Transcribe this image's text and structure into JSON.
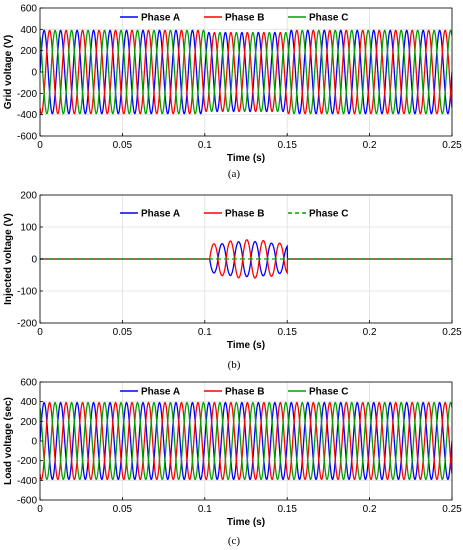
{
  "chart_data": [
    {
      "type": "line",
      "panel_label": "(a)",
      "xlabel": "Time (s)",
      "ylabel": "Grid voltage (V)",
      "xlim": [
        0,
        0.25
      ],
      "ylim": [
        -600,
        600
      ],
      "x_ticks": [
        "0",
        "0.05",
        "0.1",
        "0.15",
        "0.2",
        "0.25"
      ],
      "y_ticks": [
        "600",
        "400",
        "200",
        "0",
        "-200",
        "-400",
        "-600"
      ],
      "grid": true,
      "legend": {
        "placement": "top",
        "orientation": "horizontal"
      },
      "frequency_hz": 100,
      "t_start": 0,
      "t_end": 0.25,
      "sag": {
        "t_start": 0.1,
        "t_end": 0.15,
        "amplitude_in_sag": 370
      },
      "series": [
        {
          "name": "Phase A",
          "color": "#0000ff",
          "dash": "solid",
          "amplitude": 390,
          "phase_deg": 0
        },
        {
          "name": "Phase B",
          "color": "#ff0000",
          "dash": "solid",
          "amplitude": 390,
          "phase_deg": -120
        },
        {
          "name": "Phase C",
          "color": "#00a000",
          "dash": "solid",
          "amplitude": 390,
          "phase_deg": 120
        }
      ]
    },
    {
      "type": "line",
      "panel_label": "(b)",
      "xlabel": "Time (s)",
      "ylabel": "Injected voltage (V)",
      "xlim": [
        0,
        0.25
      ],
      "ylim": [
        -200,
        200
      ],
      "x_ticks": [
        "0",
        "0.05",
        "0.1",
        "0.15",
        "0.2",
        "0.25"
      ],
      "y_ticks": [
        "200",
        "100",
        "0",
        "-100",
        "-200"
      ],
      "grid": true,
      "legend": {
        "placement": "top",
        "orientation": "horizontal"
      },
      "frequency_hz": 100,
      "active_window": [
        0.103,
        0.15
      ],
      "series": [
        {
          "name": "Phase A",
          "color": "#0000ff",
          "dash": "solid",
          "amplitude": 55,
          "phase_deg": 180
        },
        {
          "name": "Phase B",
          "color": "#ff0000",
          "dash": "solid",
          "amplitude": 60,
          "phase_deg": 0
        },
        {
          "name": "Phase C",
          "color": "#00a000",
          "dash": "dashed",
          "amplitude": 0,
          "phase_deg": 0
        }
      ]
    },
    {
      "type": "line",
      "panel_label": "(c)",
      "xlabel": "Time (s)",
      "ylabel": "Load voltage (sec)",
      "xlim": [
        0,
        0.25
      ],
      "ylim": [
        -600,
        600
      ],
      "x_ticks": [
        "0",
        "0.05",
        "0.1",
        "0.15",
        "0.2",
        "0.25"
      ],
      "y_ticks": [
        "600",
        "400",
        "200",
        "0",
        "-200",
        "-400",
        "-600"
      ],
      "grid": true,
      "legend": {
        "placement": "top",
        "orientation": "horizontal"
      },
      "frequency_hz": 100,
      "t_start": 0,
      "t_end": 0.25,
      "series": [
        {
          "name": "Phase A",
          "color": "#0000ff",
          "dash": "solid",
          "amplitude": 390,
          "phase_deg": 0
        },
        {
          "name": "Phase B",
          "color": "#ff0000",
          "dash": "solid",
          "amplitude": 390,
          "phase_deg": -120
        },
        {
          "name": "Phase C",
          "color": "#00a000",
          "dash": "solid",
          "amplitude": 390,
          "phase_deg": 120
        }
      ]
    }
  ]
}
